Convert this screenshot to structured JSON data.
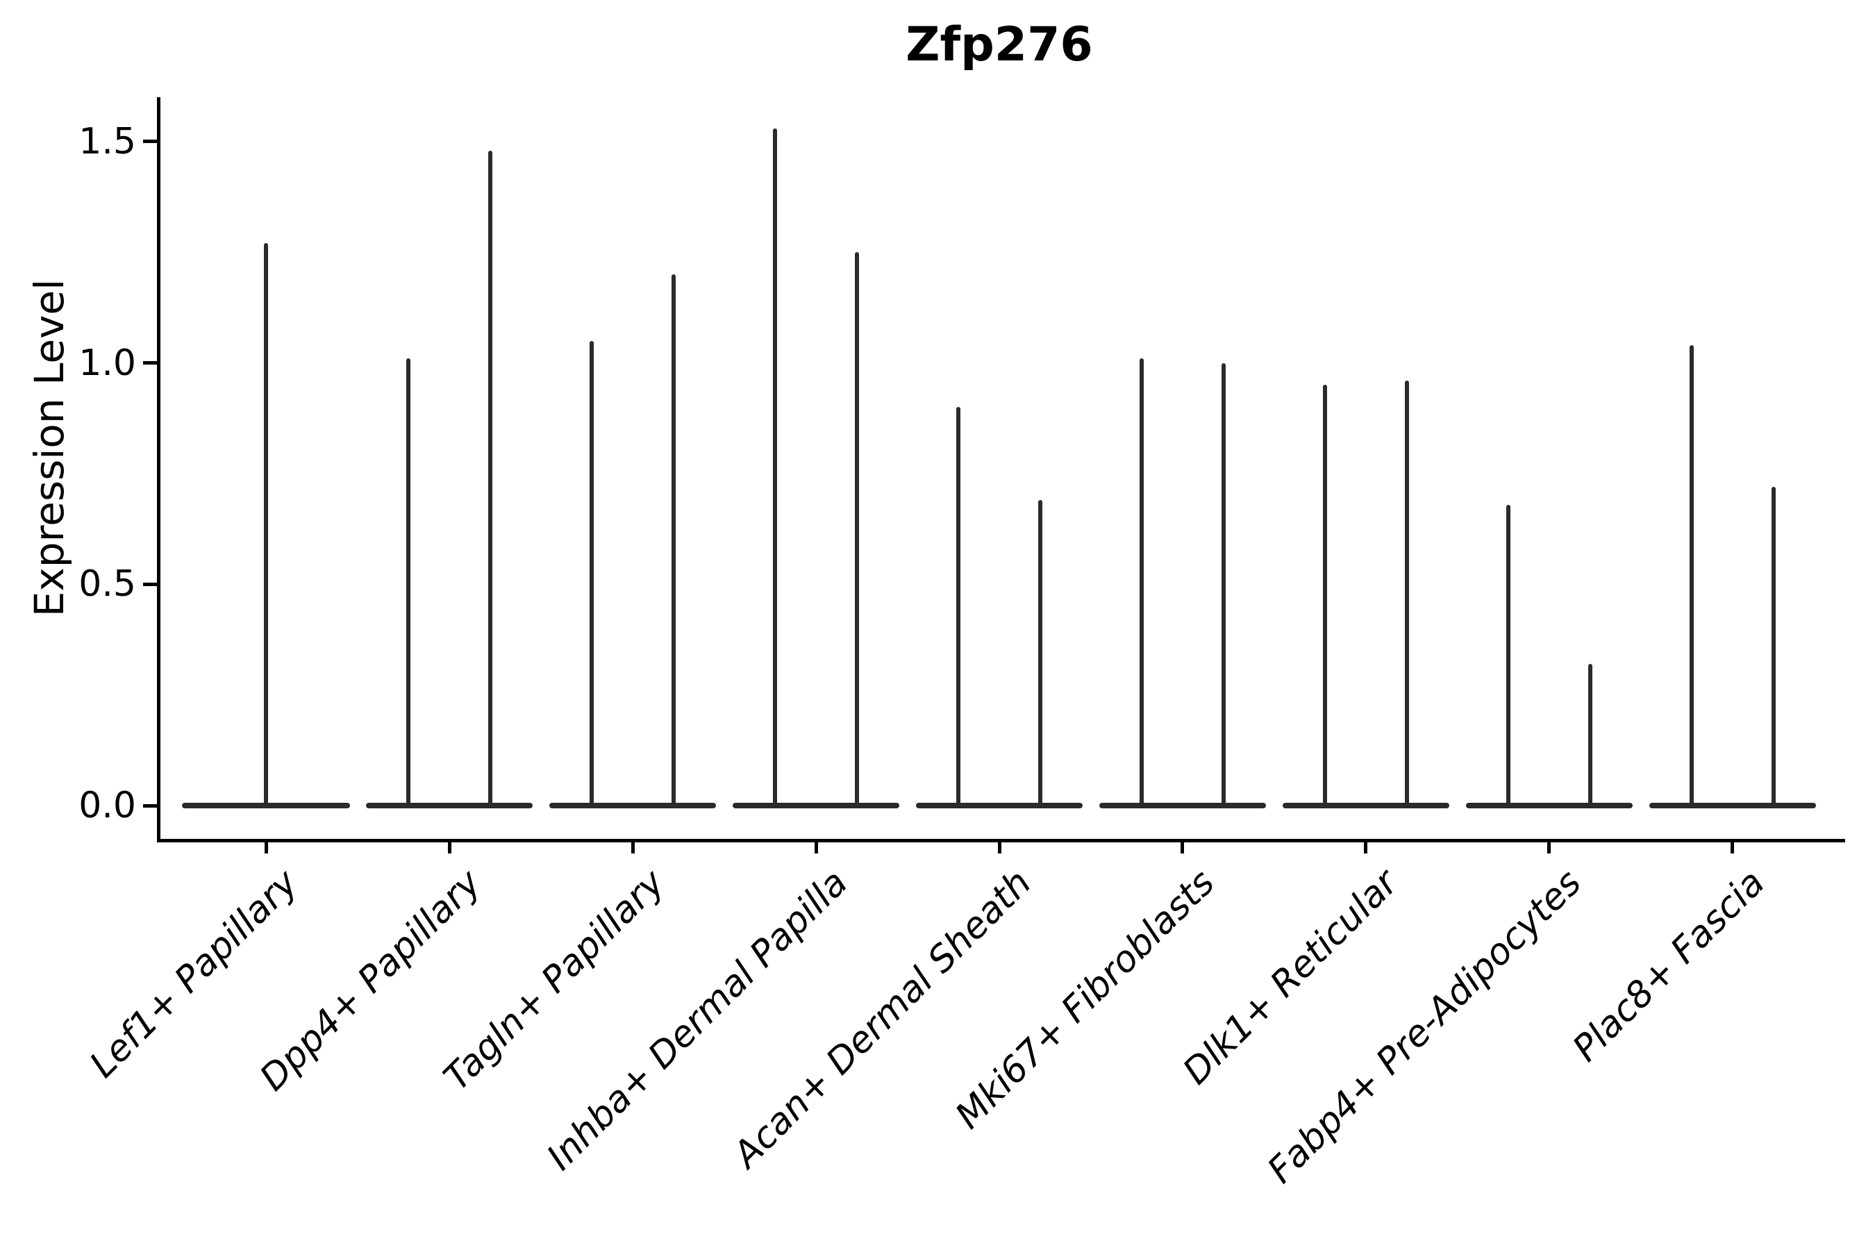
{
  "figure": {
    "title": "Zfp276",
    "ylabel": "Expression Level"
  },
  "chart_data": {
    "type": "violin",
    "title": "Zfp276",
    "xlabel": "",
    "ylabel": "Expression Level",
    "grid": false,
    "legend": "none",
    "ylim": [
      -0.075,
      1.6
    ],
    "yticks": [
      0.0,
      0.5,
      1.0,
      1.5
    ],
    "ytick_labels": [
      "0.0",
      "0.5",
      "1.0",
      "1.5"
    ],
    "xtick_rotation_deg": 45,
    "violin_min": 0.0,
    "violin_color": "#2b2b2b",
    "axis_color": "#000000",
    "categories": [
      "Lef1+ Papillary",
      "Dpp4+ Papillary",
      "Tagln+ Papillary",
      "Inhba+ Dermal Papilla",
      "Acan+ Dermal Sheath",
      "Mki67+ Fibroblasts",
      "Dlk1+ Reticular",
      "Fabp4+ Pre-Adipocytes",
      "Plac8+ Fascia"
    ],
    "series": [
      {
        "category": "Lef1+ Papillary",
        "maxima": [
          1.27
        ]
      },
      {
        "category": "Dpp4+ Papillary",
        "maxima": [
          1.01,
          1.48
        ]
      },
      {
        "category": "Tagln+ Papillary",
        "maxima": [
          1.05,
          1.2
        ]
      },
      {
        "category": "Inhba+ Dermal Papilla",
        "maxima": [
          1.53,
          1.25
        ]
      },
      {
        "category": "Acan+ Dermal Sheath",
        "maxima": [
          0.9,
          0.69
        ]
      },
      {
        "category": "Mki67+ Fibroblasts",
        "maxima": [
          1.01,
          1.0
        ]
      },
      {
        "category": "Dlk1+ Reticular",
        "maxima": [
          0.95,
          0.96
        ]
      },
      {
        "category": "Fabp4+ Pre-Adipocytes",
        "maxima": [
          0.68,
          0.32
        ]
      },
      {
        "category": "Plac8+ Fascia",
        "maxima": [
          1.04,
          0.72
        ]
      }
    ]
  }
}
